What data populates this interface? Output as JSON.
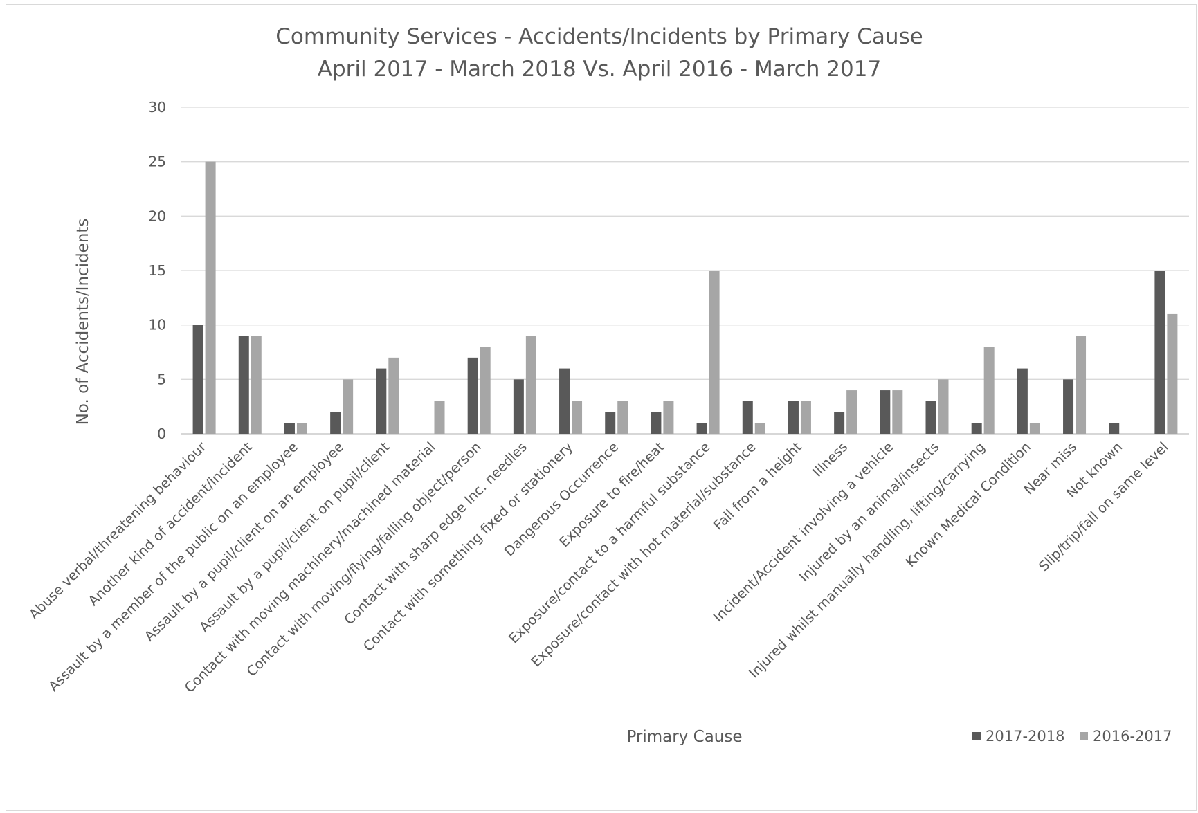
{
  "chart_data": {
    "type": "bar",
    "title": "Community Services  - Accidents/Incidents  by Primary Cause",
    "subtitle": "April 2017 - March 2018 Vs. April 2016 - March 2017",
    "xlabel": "Primary Cause",
    "ylabel": "No. of Accidents/Incidents",
    "ylim": [
      0,
      30
    ],
    "yticks": [
      0,
      5,
      10,
      15,
      20,
      25,
      30
    ],
    "grid": true,
    "legend_position": "bottom-right",
    "categories": [
      "Abuse verbal/threatening behaviour",
      "Another kind of accident/incident",
      "Assault by a member of the public on an employee",
      "Assault by a pupil/client on an employee",
      "Assault by a pupil/client on pupil/client",
      "Contact with moving machinery/machined material",
      "Contact with moving/flying/falling object/person",
      "Contact with sharp edge Inc. needles",
      "Contact with something fixed or stationery",
      "Dangerous Occurrence",
      "Exposure to fire/heat",
      "Exposure/contact to a harmful substance",
      "Exposure/contact with hot material/substance",
      "Fall from a height",
      "Illness",
      "Incident/Accident involving a vehicle",
      "Injured by an animal/insects",
      "Injured whilst manually handling, lifting/carrying",
      "Known Medical Condition",
      "Near miss",
      "Not known",
      "Slip/trip/fall on same level"
    ],
    "series": [
      {
        "name": "2017-2018",
        "color": "#595959",
        "values": [
          10,
          9,
          1,
          2,
          6,
          0,
          7,
          5,
          6,
          2,
          2,
          1,
          3,
          3,
          2,
          4,
          3,
          1,
          6,
          5,
          1,
          15
        ]
      },
      {
        "name": "2016-2017",
        "color": "#a6a6a6",
        "values": [
          25,
          9,
          1,
          5,
          7,
          3,
          8,
          9,
          3,
          3,
          3,
          15,
          1,
          3,
          4,
          4,
          5,
          8,
          1,
          9,
          0,
          11
        ]
      }
    ]
  }
}
